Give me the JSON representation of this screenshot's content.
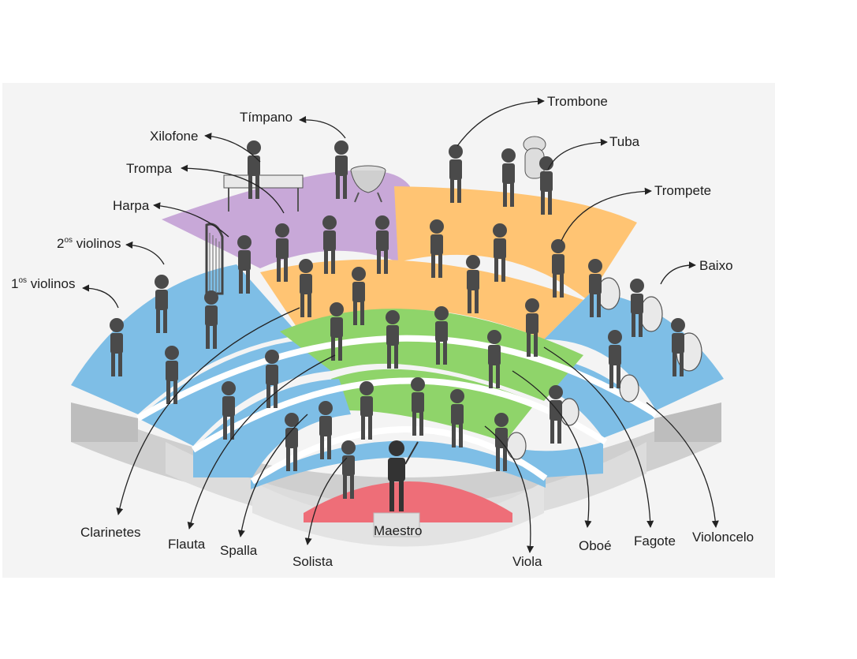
{
  "labels": {
    "trombone": "Trombone",
    "timpano": "Tímpano",
    "xilofone": "Xilofone",
    "tuba": "Tuba",
    "trompa": "Trompa",
    "trompete": "Trompete",
    "harpa": "Harpa",
    "baixo": "Baixo",
    "violinos2_prefix": "2",
    "violinos2_sup": "os",
    "violinos2_word": " violinos",
    "violinos1_prefix": "1",
    "violinos1_sup": "os",
    "violinos1_word": " violinos",
    "clarinetes": "Clarinetes",
    "flauta": "Flauta",
    "spalla": "Spalla",
    "solista": "Solista",
    "maestro": "Maestro",
    "viola": "Viola",
    "oboe": "Oboé",
    "fagote": "Fagote",
    "violoncelo": "Violoncelo"
  },
  "colors": {
    "background_panel": "#f4f4f4",
    "percussion_section": "#c8a8d8",
    "brass_section": "#ffc473",
    "woodwind_section": "#8fd46a",
    "strings_section": "#7ebee6",
    "conductor_section": "#ee6e78",
    "stage_gray": "#d9d9d9",
    "figure": "#4a4a4a"
  }
}
